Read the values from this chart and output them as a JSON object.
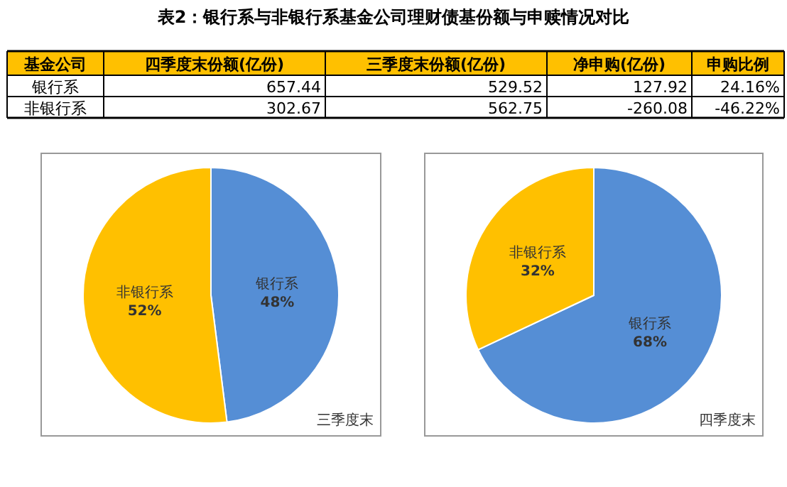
{
  "chart_data": [
    {
      "type": "other",
      "title": "表2：银行系与非银行系基金公司理财债基份额与申赎情况对比",
      "categories": [
        "基金公司",
        "四季度末份额(亿份)",
        "三季度末份额(亿份)",
        "净申购(亿份)",
        "申购比例"
      ],
      "annotations": [
        "银行系",
        "657.44",
        "529.52",
        "127.92",
        "24.16%",
        "非银行系",
        "302.67",
        "562.75",
        "-260.08",
        "-46.22%"
      ]
    },
    {
      "type": "pie",
      "title": "三季度末",
      "categories": [
        "银行系",
        "非银行系"
      ],
      "values": [
        48,
        52
      ],
      "value_labels": [
        "48%",
        "52%"
      ],
      "colors": [
        "#558ed5",
        "#ffc000"
      ]
    },
    {
      "type": "pie",
      "title": "四季度末",
      "categories": [
        "银行系",
        "非银行系"
      ],
      "values": [
        68,
        32
      ],
      "value_labels": [
        "68%",
        "32%"
      ],
      "colors": [
        "#558ed5",
        "#ffc000"
      ]
    }
  ]
}
